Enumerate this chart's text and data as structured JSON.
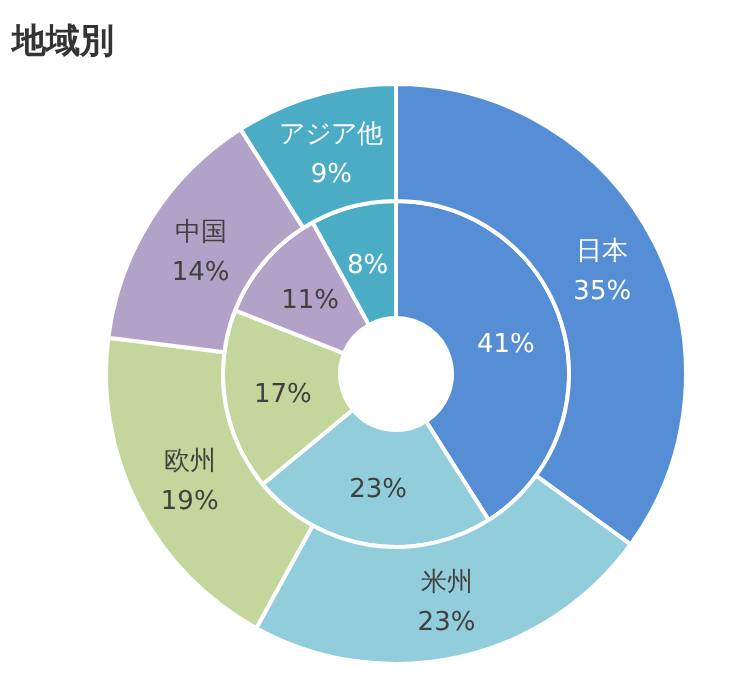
{
  "chart_data": {
    "type": "donut",
    "title": "地域別",
    "categories": [
      "日本",
      "米州",
      "欧州",
      "中国",
      "アジア他"
    ],
    "colors": [
      "#558ed5",
      "#92cddc",
      "#c3d69b",
      "#b3a2c7",
      "#4bacc6"
    ],
    "series": [
      {
        "values": [
          41,
          23,
          17,
          11,
          8
        ],
        "value_labels": [
          "41%",
          "23%",
          "17%",
          "11%",
          "8%"
        ]
      },
      {
        "values": [
          35,
          23,
          19,
          14,
          9
        ],
        "value_labels": [
          "35%",
          "23%",
          "19%",
          "14%",
          "9%"
        ]
      }
    ]
  }
}
